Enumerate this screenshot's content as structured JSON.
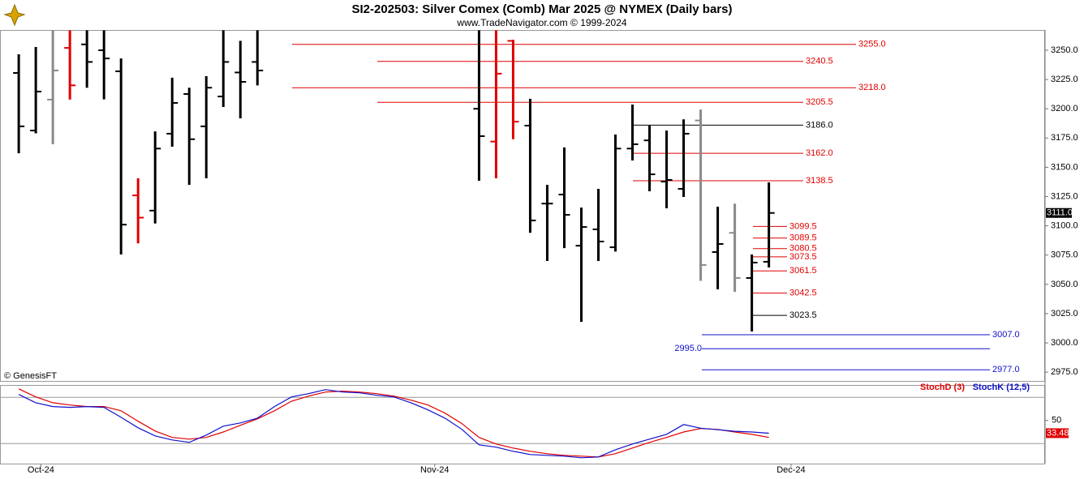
{
  "chart_data": [
    {
      "type": "ohlc",
      "title": "SI2-202503:  Silver Comex (Comb) Mar 2025 @ NYMEX  (Daily bars)",
      "subtitle": "www.TradeNavigator.com © 1999-2024",
      "source": "© GenesisFT",
      "x": [
        0,
        1,
        2,
        3,
        4,
        5,
        6,
        7,
        8,
        9,
        10,
        11,
        12,
        13,
        14,
        15,
        16,
        17,
        18,
        19,
        20,
        21,
        22,
        23,
        24,
        25,
        26,
        27,
        28,
        29,
        30,
        31,
        32,
        33,
        34,
        35,
        36,
        37,
        38,
        39,
        40,
        41,
        42,
        43,
        44
      ],
      "open": [
        3230.6,
        3181.4,
        3207.8,
        3252,
        3255,
        3250,
        3232,
        3126,
        3113,
        3178.7,
        3212.6,
        3185,
        3210.5,
        3231,
        3240,
        null,
        null,
        null,
        null,
        null,
        null,
        null,
        null,
        null,
        null,
        null,
        null,
        3200,
        3172,
        3258,
        3185.6,
        3119,
        3126.7,
        3083,
        3097,
        3081.7,
        3166,
        3173,
        3137.8,
        3131.6,
        3190,
        3077.6,
        3094,
        3055.4,
        3069.3
      ],
      "high": [
        3246.5,
        3252.8,
        3267,
        3267,
        3267,
        3267,
        3243,
        3140.6,
        3180.7,
        3226.5,
        3218,
        3227.8,
        3267,
        3258,
        3267,
        null,
        null,
        null,
        null,
        null,
        null,
        null,
        null,
        null,
        null,
        null,
        null,
        3267,
        3267,
        3259,
        3208.5,
        3135,
        3167,
        3115.6,
        3131.6,
        3178,
        3203.6,
        3185.6,
        3181.4,
        3191,
        3199.4,
        3116.4,
        3119,
        3075.5,
        3137.1
      ],
      "low": [
        3162,
        3179,
        3169.7,
        3207.8,
        3218,
        3208,
        3075.5,
        3085,
        3102,
        3167.6,
        3135,
        3140.6,
        3201.5,
        3191.8,
        3220,
        null,
        null,
        null,
        null,
        null,
        null,
        null,
        null,
        null,
        null,
        null,
        null,
        3138.5,
        3140.6,
        3174,
        3094,
        3070,
        3081,
        3018,
        3070,
        3078,
        3155.8,
        3129.5,
        3115,
        3124.7,
        3053,
        3045.7,
        3043.6,
        3009.7,
        3064.4
      ],
      "close": [
        3185,
        3214.7,
        3232.7,
        3220,
        3240,
        3243,
        3101,
        3107,
        3166,
        3205,
        3174,
        3218,
        3240,
        3223,
        3232.7,
        null,
        null,
        null,
        null,
        null,
        null,
        null,
        null,
        null,
        null,
        null,
        null,
        3176.6,
        3230,
        3189,
        3104.6,
        3119,
        3109.4,
        3099,
        3086.6,
        3166,
        3169.7,
        3144,
        3139.2,
        3178.7,
        3066.5,
        3084.5,
        3055.4,
        3068.6,
        3111
      ],
      "colors": [
        "#000",
        "#000",
        "#8a8a8a",
        "#e00000",
        "#000",
        "#000",
        "#000",
        "#e00000",
        "#000",
        "#000",
        "#000",
        "#000",
        "#000",
        "#000",
        "#000",
        null,
        null,
        null,
        null,
        null,
        null,
        null,
        null,
        null,
        null,
        null,
        null,
        "#000",
        "#e00000",
        "#e00000",
        "#000",
        "#000",
        "#000",
        "#000",
        "#000",
        "#000",
        "#000",
        "#000",
        "#000",
        "#000",
        "#8a8a8a",
        "#000",
        "#8a8a8a",
        "#000",
        "#000"
      ],
      "last_close_label": "3111.0",
      "xlim": [
        -1.1,
        60.2
      ],
      "ylim": [
        2967.5,
        3267.3
      ],
      "yticks": [
        {
          "value": 2975,
          "label": "2975.0"
        },
        {
          "value": 3000,
          "label": "3000.0"
        },
        {
          "value": 3025,
          "label": "3025.0"
        },
        {
          "value": 3050,
          "label": "3050.0"
        },
        {
          "value": 3075,
          "label": "3075.0"
        },
        {
          "value": 3100,
          "label": "3100.0"
        },
        {
          "value": 3125,
          "label": "3125.0"
        },
        {
          "value": 3150,
          "label": "3150.0"
        },
        {
          "value": 3175,
          "label": "3175.0"
        },
        {
          "value": 3200,
          "label": "3200.0"
        },
        {
          "value": 3225,
          "label": "3225.0"
        },
        {
          "value": 3250,
          "label": "3250.0"
        }
      ],
      "levels": [
        {
          "value": 3255,
          "label": "3255.0",
          "color": "#e00000"
        },
        {
          "value": 3240.5,
          "label": "3240.5",
          "color": "#e00000"
        },
        {
          "value": 3218,
          "label": "3218.0",
          "color": "#e00000"
        },
        {
          "value": 3205.5,
          "label": "3205.5",
          "color": "#e00000"
        },
        {
          "value": 3186,
          "label": "3186.0",
          "color": "#000000"
        },
        {
          "value": 3162,
          "label": "3162.0",
          "color": "#e00000"
        },
        {
          "value": 3138.5,
          "label": "3138.5",
          "color": "#e00000"
        },
        {
          "value": 3099.5,
          "label": "3099.5",
          "color": "#e00000"
        },
        {
          "value": 3089.5,
          "label": "3089.5",
          "color": "#e00000"
        },
        {
          "value": 3080.5,
          "label": "3080.5",
          "color": "#e00000"
        },
        {
          "value": 3073.5,
          "label": "3073.5",
          "color": "#e00000"
        },
        {
          "value": 3061.5,
          "label": "3061.5",
          "color": "#e00000"
        },
        {
          "value": 3042.5,
          "label": "3042.5",
          "color": "#e00000"
        },
        {
          "value": 3023.5,
          "label": "3023.5",
          "color": "#000000"
        },
        {
          "value": 3007,
          "label": "3007.0",
          "color": "#1010cc"
        },
        {
          "value": 2995,
          "label": "2995.0",
          "color": "#1010cc"
        },
        {
          "value": 2977,
          "label": "2977.0",
          "color": "#1010cc"
        }
      ]
    },
    {
      "type": "line",
      "x": [
        0,
        1,
        2,
        3,
        4,
        5,
        6,
        7,
        8,
        9,
        10,
        11,
        12,
        13,
        14,
        15,
        16,
        17,
        18,
        19,
        20,
        21,
        22,
        23,
        24,
        25,
        26,
        27,
        28,
        29,
        30,
        31,
        32,
        33,
        34,
        35,
        36,
        37,
        38,
        39,
        40,
        41,
        42,
        43,
        44
      ],
      "series": [
        {
          "name": "StochD (3)",
          "color": "#e00000",
          "values": [
            91,
            80.5,
            73,
            70,
            68,
            68,
            62.6,
            49,
            36.3,
            28,
            25.8,
            28,
            35,
            43.7,
            52,
            62.6,
            75,
            81.6,
            86.8,
            88,
            86.8,
            84.7,
            81.6,
            76.3,
            70,
            59.5,
            45.8,
            28,
            19.5,
            14.2,
            10,
            6.8,
            4.7,
            3.7,
            2.6,
            6.8,
            14.2,
            21.6,
            28,
            35,
            39.5,
            38.4,
            35,
            32,
            28
          ]
        },
        {
          "name": "StochK (12,5)",
          "color": "#1010cc",
          "values": [
            83.7,
            73,
            68,
            67,
            68,
            67,
            54,
            40.5,
            30,
            24.7,
            21.6,
            31,
            42.6,
            46.8,
            53,
            68,
            80.5,
            84.7,
            90,
            86.8,
            85.8,
            82.6,
            80.5,
            73,
            63.7,
            53,
            38.4,
            18.4,
            15.3,
            10,
            5.8,
            4.7,
            3.7,
            1.6,
            2.6,
            12,
            19.5,
            25.8,
            32,
            44.7,
            40,
            38,
            36,
            35,
            33.48
          ]
        }
      ],
      "xlim": [
        -1.1,
        60.2
      ],
      "ylim": [
        -6,
        96
      ],
      "yticks": [
        50
      ],
      "levels": [
        20,
        80
      ],
      "xticks": [
        {
          "value": 1.3,
          "label": "Oct-24"
        },
        {
          "value": 24.4,
          "label": "Nov-24"
        },
        {
          "value": 45.3,
          "label": "Dec-24"
        }
      ]
    }
  ]
}
